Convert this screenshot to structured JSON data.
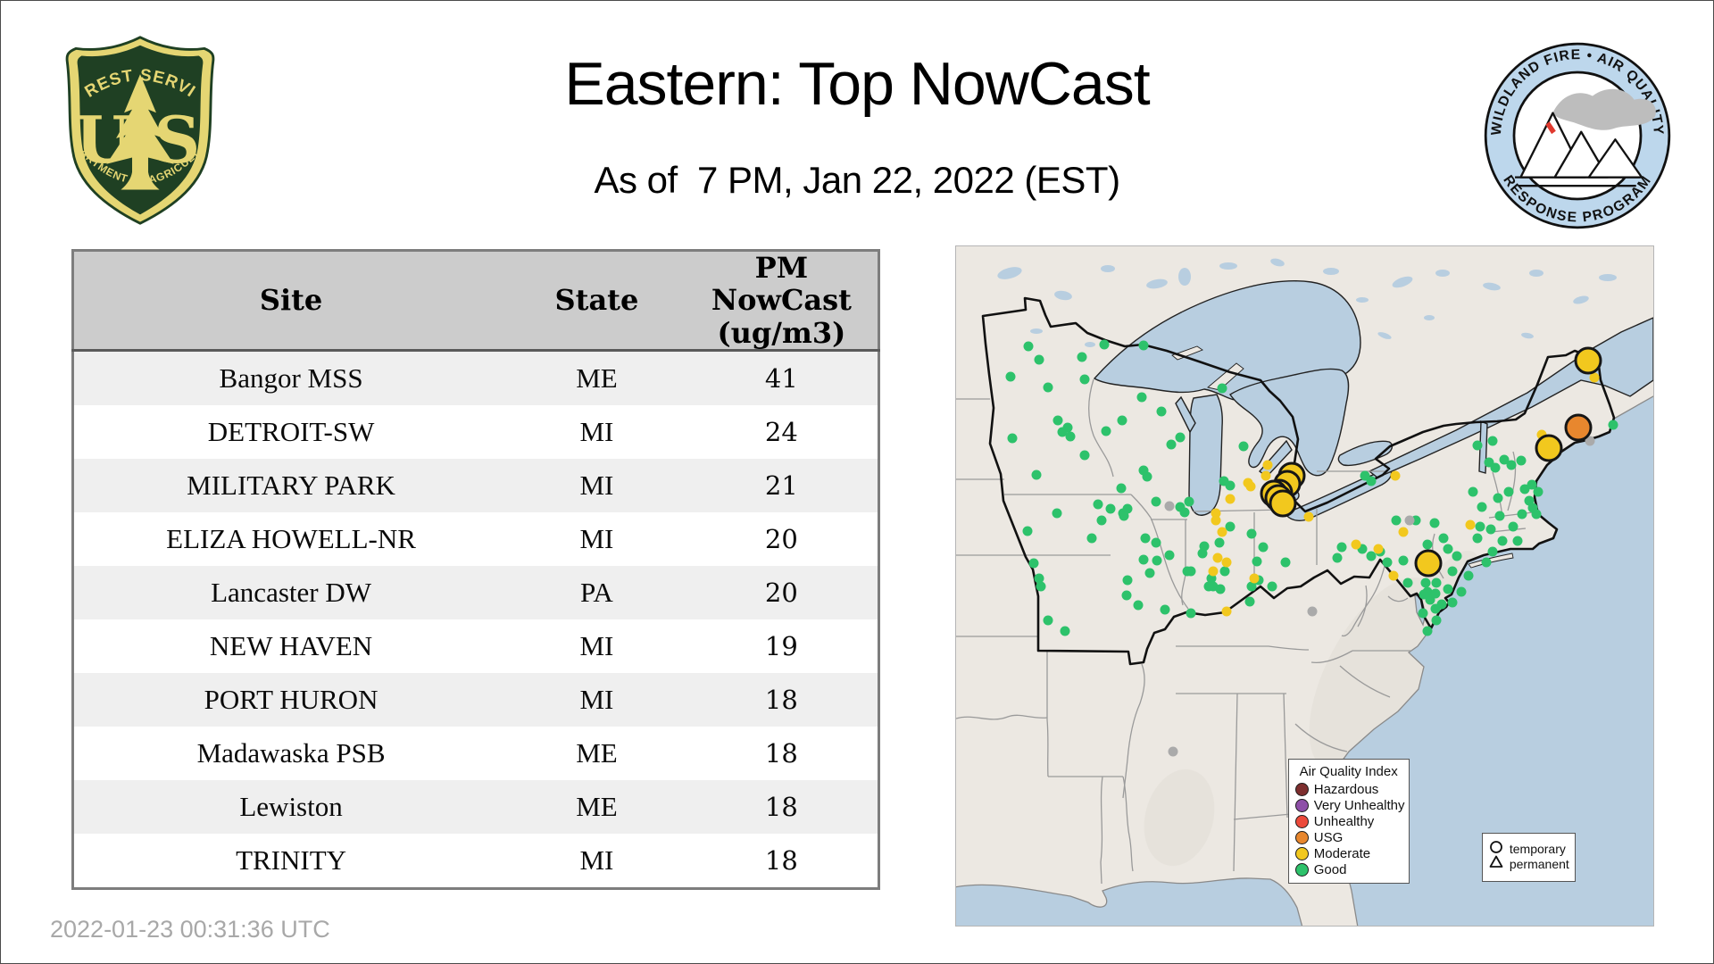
{
  "page": {
    "title": "Eastern: Top NowCast",
    "subtitle": "As of  7 PM, Jan 22, 2022 (EST)",
    "timestamp": "2022-01-23 00:31:36 UTC"
  },
  "logos": {
    "usfs": {
      "top_text": "FOREST SERVICE",
      "letter_left": "U",
      "letter_right": "S",
      "bottom_text": "DEPARTMENT OF AGRICULTURE",
      "shield_green": "#1f4023",
      "shield_gold": "#e5d673"
    },
    "wfaqrp": {
      "top_text": "WILDLAND FIRE • AIR QUALITY",
      "bottom_text": "RESPONSE PROGRAM",
      "ring_blue": "#bdd7ec",
      "flame_red": "#e03a2f",
      "smoke_gray": "#bdbdbd"
    }
  },
  "table": {
    "columns": [
      "Site",
      "State",
      "PM NowCast (ug/m3)"
    ],
    "rows": [
      {
        "site": "Bangor MSS",
        "state": "ME",
        "value": "41"
      },
      {
        "site": "DETROIT-SW",
        "state": "MI",
        "value": "24"
      },
      {
        "site": "MILITARY PARK",
        "state": "MI",
        "value": "21"
      },
      {
        "site": "ELIZA HOWELL-NR",
        "state": "MI",
        "value": "20"
      },
      {
        "site": "Lancaster DW",
        "state": "PA",
        "value": "20"
      },
      {
        "site": "NEW HAVEN",
        "state": "MI",
        "value": "19"
      },
      {
        "site": "PORT HURON",
        "state": "MI",
        "value": "18"
      },
      {
        "site": "Madawaska PSB",
        "state": "ME",
        "value": "18"
      },
      {
        "site": "Lewiston",
        "state": "ME",
        "value": "18"
      },
      {
        "site": "TRINITY",
        "state": "MI",
        "value": "18"
      }
    ]
  },
  "map": {
    "colors": {
      "land": "#ece8e2",
      "water": "#b8cee0",
      "good": "#2dc26b",
      "moderate": "#f2c81e",
      "usg": "#e8872e",
      "unhealthy": "#ec4a3b",
      "very_unhealthy": "#8e4fa8",
      "hazardous": "#7d2e2e",
      "inactive": "#aaaaaa"
    },
    "legend": {
      "title": "Air Quality Index",
      "items": [
        {
          "label": "Hazardous",
          "color": "#7d2e2e"
        },
        {
          "label": "Very Unhealthy",
          "color": "#8e4fa8"
        },
        {
          "label": "Unhealthy",
          "color": "#ec4a3b"
        },
        {
          "label": "USG",
          "color": "#e8872e"
        },
        {
          "label": "Moderate",
          "color": "#f2c81e"
        },
        {
          "label": "Good",
          "color": "#2dc26b"
        }
      ]
    },
    "marker_legend": {
      "circle": "temporary",
      "triangle": "permanent"
    },
    "markers": {
      "large": [
        {
          "x": 90.7,
          "y": 16.8,
          "level": "moderate"
        },
        {
          "x": 89.2,
          "y": 26.7,
          "level": "usg"
        },
        {
          "x": 85.0,
          "y": 29.7,
          "level": "moderate"
        },
        {
          "x": 67.7,
          "y": 46.7,
          "level": "moderate"
        },
        {
          "x": 48.2,
          "y": 33.8,
          "level": "moderate"
        },
        {
          "x": 47.5,
          "y": 35.0,
          "level": "moderate"
        },
        {
          "x": 46.4,
          "y": 36.3,
          "level": "moderate"
        },
        {
          "x": 45.6,
          "y": 36.4,
          "level": "moderate"
        },
        {
          "x": 46.2,
          "y": 37.1,
          "level": "moderate"
        },
        {
          "x": 46.9,
          "y": 37.9,
          "level": "moderate"
        }
      ],
      "good": [
        [
          10.4,
          14.7
        ],
        [
          11.9,
          16.7
        ],
        [
          18.0,
          16.3
        ],
        [
          7.8,
          19.2
        ],
        [
          13.2,
          20.7
        ],
        [
          18.4,
          19.6
        ],
        [
          21.3,
          14.5
        ],
        [
          26.9,
          14.6
        ],
        [
          14.6,
          25.6
        ],
        [
          16.0,
          26.7
        ],
        [
          16.4,
          28.0
        ],
        [
          15.2,
          27.3
        ],
        [
          8.1,
          28.3
        ],
        [
          11.5,
          33.6
        ],
        [
          18.4,
          30.7
        ],
        [
          21.5,
          27.2
        ],
        [
          23.8,
          25.6
        ],
        [
          26.6,
          22.2
        ],
        [
          29.5,
          24.3
        ],
        [
          32.1,
          28.1
        ],
        [
          30.9,
          29.2
        ],
        [
          23.7,
          35.6
        ],
        [
          28.7,
          37.6
        ],
        [
          27.4,
          33.9
        ],
        [
          26.9,
          33.0
        ],
        [
          38.2,
          20.9
        ],
        [
          41.2,
          29.4
        ],
        [
          39.3,
          35.2
        ],
        [
          38.4,
          34.6
        ],
        [
          10.2,
          41.9
        ],
        [
          11.1,
          46.6
        ],
        [
          11.9,
          48.9
        ],
        [
          12.2,
          50.1
        ],
        [
          14.5,
          39.3
        ],
        [
          19.4,
          43.0
        ],
        [
          20.9,
          40.4
        ],
        [
          22.2,
          38.6
        ],
        [
          23.9,
          39.3
        ],
        [
          24.6,
          38.6
        ],
        [
          13.2,
          55.1
        ],
        [
          15.6,
          56.6
        ],
        [
          24.6,
          49.1
        ],
        [
          24.4,
          51.4
        ],
        [
          26.1,
          52.8
        ],
        [
          30.0,
          53.5
        ],
        [
          27.1,
          43.0
        ],
        [
          28.7,
          43.6
        ],
        [
          26.9,
          46.1
        ],
        [
          28.8,
          46.3
        ],
        [
          30.6,
          45.5
        ],
        [
          27.8,
          48.1
        ],
        [
          33.7,
          47.8
        ],
        [
          32.1,
          38.4
        ],
        [
          32.8,
          39.2
        ],
        [
          33.4,
          37.6
        ],
        [
          20.4,
          38.0
        ],
        [
          24.1,
          39.7
        ],
        [
          35.6,
          44.2
        ],
        [
          37.8,
          43.6
        ],
        [
          39.3,
          41.3
        ],
        [
          36.6,
          48.9
        ],
        [
          38.5,
          47.8
        ],
        [
          33.7,
          54.0
        ],
        [
          33.2,
          47.8
        ],
        [
          43.1,
          46.4
        ],
        [
          43.4,
          49.1
        ],
        [
          44.0,
          44.3
        ],
        [
          42.4,
          42.3
        ],
        [
          47.2,
          46.5
        ],
        [
          42.4,
          50.1
        ],
        [
          45.3,
          50.0
        ],
        [
          42.1,
          52.3
        ],
        [
          36.9,
          50.1
        ],
        [
          37.9,
          50.4
        ],
        [
          36.2,
          50.1
        ],
        [
          35.3,
          45.2
        ],
        [
          58.6,
          33.8
        ],
        [
          59.6,
          34.6
        ],
        [
          63.1,
          40.4
        ],
        [
          66.0,
          40.4
        ],
        [
          68.6,
          40.7
        ],
        [
          67.6,
          43.9
        ],
        [
          69.9,
          43.0
        ],
        [
          70.6,
          44.6
        ],
        [
          71.8,
          45.6
        ],
        [
          58.3,
          44.6
        ],
        [
          59.5,
          45.6
        ],
        [
          60.8,
          44.9
        ],
        [
          61.8,
          46.5
        ],
        [
          64.1,
          46.2
        ],
        [
          55.3,
          44.3
        ],
        [
          54.7,
          45.9
        ],
        [
          74.1,
          36.1
        ],
        [
          74.8,
          29.3
        ],
        [
          77.0,
          28.6
        ],
        [
          76.4,
          31.8
        ],
        [
          78.6,
          31.4
        ],
        [
          81.0,
          31.5
        ],
        [
          77.3,
          32.6
        ],
        [
          79.6,
          32.2
        ],
        [
          81.6,
          35.8
        ],
        [
          82.2,
          37.4
        ],
        [
          81.2,
          39.4
        ],
        [
          83.2,
          39.4
        ],
        [
          79.9,
          41.3
        ],
        [
          76.7,
          41.7
        ],
        [
          75.1,
          41.3
        ],
        [
          77.7,
          37.1
        ],
        [
          75.4,
          38.4
        ],
        [
          78.0,
          39.7
        ],
        [
          83.5,
          36.1
        ],
        [
          79.3,
          36.1
        ],
        [
          82.6,
          35.1
        ],
        [
          82.7,
          38.5
        ],
        [
          77.0,
          44.9
        ],
        [
          74.8,
          43.0
        ],
        [
          71.2,
          47.8
        ],
        [
          73.5,
          48.5
        ],
        [
          76.0,
          46.5
        ],
        [
          78.3,
          43.3
        ],
        [
          80.6,
          43.3
        ],
        [
          68.9,
          49.5
        ],
        [
          67.6,
          50.8
        ],
        [
          70.6,
          50.4
        ],
        [
          72.5,
          50.8
        ],
        [
          68.0,
          52.1
        ],
        [
          69.6,
          52.7
        ],
        [
          71.2,
          52.4
        ],
        [
          67.0,
          54.0
        ],
        [
          68.9,
          55.0
        ],
        [
          67.6,
          56.6
        ],
        [
          64.8,
          49.6
        ],
        [
          67.3,
          49.6
        ],
        [
          67.1,
          51.2
        ],
        [
          68.8,
          51.1
        ],
        [
          68.8,
          53.3
        ],
        [
          94.3,
          26.3
        ]
      ],
      "moderate_small": [
        [
          44.7,
          32.2
        ],
        [
          44.4,
          33.8
        ],
        [
          41.9,
          34.8
        ],
        [
          50.6,
          39.8
        ],
        [
          37.2,
          40.4
        ],
        [
          38.2,
          42.0
        ],
        [
          36.9,
          47.8
        ],
        [
          38.8,
          46.5
        ],
        [
          38.8,
          53.7
        ],
        [
          37.5,
          45.9
        ],
        [
          42.8,
          48.9
        ],
        [
          37.3,
          39.3
        ],
        [
          39.3,
          37.2
        ],
        [
          42.3,
          35.4
        ],
        [
          46.8,
          39.0
        ],
        [
          57.3,
          43.9
        ],
        [
          60.5,
          44.6
        ],
        [
          64.1,
          42.0
        ],
        [
          62.8,
          48.5
        ],
        [
          63.0,
          33.8
        ],
        [
          73.8,
          41.0
        ],
        [
          91.5,
          19.3
        ],
        [
          84.0,
          27.7
        ]
      ],
      "inactive": [
        [
          30.6,
          38.3
        ],
        [
          65.0,
          40.4
        ],
        [
          51.1,
          53.7
        ],
        [
          90.9,
          28.7
        ],
        [
          31.1,
          74.4
        ]
      ]
    }
  }
}
